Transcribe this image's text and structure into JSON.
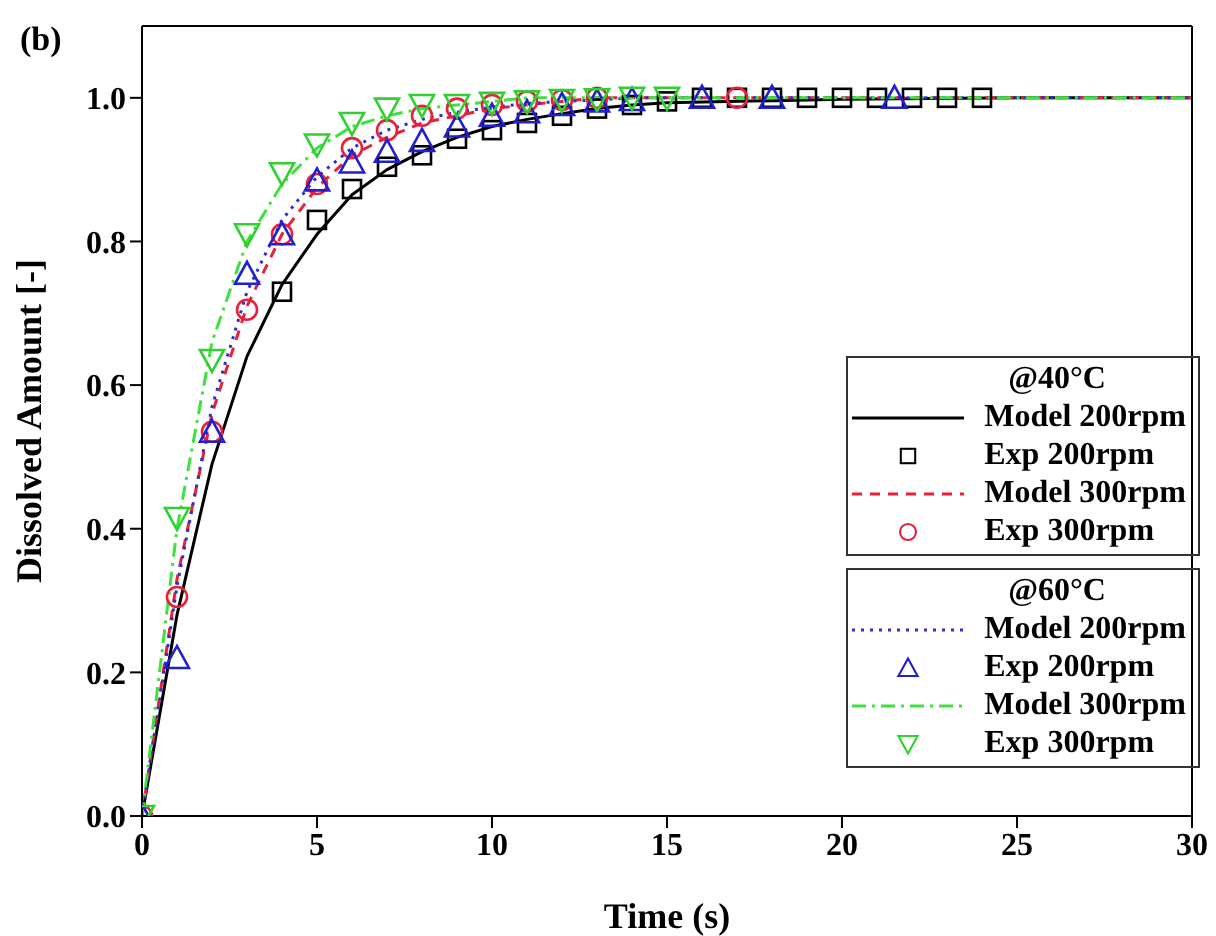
{
  "chart_data": {
    "type": "line",
    "title": "(b)",
    "xlabel": "Time (s)",
    "ylabel": "Dissolved Amount [-]",
    "xlim": [
      0,
      30
    ],
    "xticks": [
      0,
      5,
      10,
      15,
      20,
      25,
      30
    ],
    "ylim": [
      0,
      1.1
    ],
    "yticks": [
      {
        "value": 0,
        "label": "0.0"
      },
      {
        "value": 0.2,
        "label": "0.2"
      },
      {
        "value": 0.4,
        "label": "0.4"
      },
      {
        "value": 0.6,
        "label": "0.6"
      },
      {
        "value": 0.8,
        "label": "0.8"
      },
      {
        "value": 1,
        "label": "1.0"
      }
    ],
    "legend": "right",
    "annotations": [
      "@40°C",
      "@60°C"
    ],
    "series": [
      {
        "name": "Model 200rpm",
        "color": "#000000",
        "line_style": "solid",
        "marker": "none",
        "x": [
          0,
          1,
          2,
          3,
          4,
          5,
          6,
          7,
          8,
          9,
          10,
          11,
          12,
          13,
          14,
          15,
          20,
          25,
          30
        ],
        "values": [
          0,
          0.28,
          0.49,
          0.64,
          0.74,
          0.81,
          0.865,
          0.9,
          0.925,
          0.945,
          0.96,
          0.97,
          0.978,
          0.985,
          0.99,
          0.993,
          0.998,
          1,
          1
        ]
      },
      {
        "name": "Exp 200rpm",
        "type": "scatter",
        "color": "#000000",
        "marker": "square",
        "x": [
          4,
          5,
          6,
          7,
          8,
          9,
          10,
          11,
          12,
          13,
          14,
          15,
          16,
          17,
          18,
          19,
          20,
          21,
          22,
          23,
          24
        ],
        "values": [
          0.73,
          0.83,
          0.873,
          0.904,
          0.92,
          0.943,
          0.955,
          0.965,
          0.975,
          0.985,
          0.99,
          0.995,
          1,
          1,
          1,
          1,
          1,
          1,
          1,
          1,
          1
        ]
      },
      {
        "name": "Model 300rpm",
        "color": "#e8203a",
        "line_style": "dashed",
        "marker": "none",
        "x": [
          0,
          1,
          2,
          3,
          4,
          5,
          6,
          7,
          8,
          9,
          10,
          11,
          12,
          13,
          15,
          30
        ],
        "values": [
          0,
          0.33,
          0.56,
          0.71,
          0.81,
          0.875,
          0.92,
          0.945,
          0.965,
          0.975,
          0.985,
          0.99,
          0.995,
          1,
          1,
          1
        ]
      },
      {
        "name": "Exp 300rpm",
        "type": "scatter",
        "color": "#e8203a",
        "marker": "circle",
        "x": [
          0,
          1,
          2,
          3,
          4,
          5,
          6,
          7,
          8,
          9,
          10,
          11,
          12,
          13,
          17
        ],
        "values": [
          0,
          0.305,
          0.535,
          0.705,
          0.81,
          0.88,
          0.93,
          0.955,
          0.975,
          0.985,
          0.99,
          0.995,
          0.997,
          1,
          1
        ]
      },
      {
        "name": "Model 200rpm",
        "color": "#3030c8",
        "line_style": "dotted",
        "marker": "none",
        "x": [
          0,
          1,
          2,
          3,
          4,
          5,
          6,
          7,
          8,
          9,
          10,
          11,
          12,
          13,
          14,
          30
        ],
        "values": [
          0,
          0.32,
          0.57,
          0.73,
          0.83,
          0.89,
          0.93,
          0.955,
          0.97,
          0.98,
          0.987,
          0.992,
          0.995,
          0.997,
          1,
          1
        ]
      },
      {
        "name": "Exp 200rpm",
        "type": "scatter",
        "color": "#2020d0",
        "marker": "triangle",
        "x": [
          0,
          1,
          2,
          3,
          4,
          5,
          6,
          7,
          8,
          9,
          10,
          11,
          12,
          13,
          14,
          16,
          18,
          21.5
        ],
        "values": [
          0,
          0.22,
          0.535,
          0.755,
          0.81,
          0.885,
          0.91,
          0.925,
          0.94,
          0.96,
          0.975,
          0.98,
          0.99,
          0.995,
          0.997,
          1,
          1,
          1
        ]
      },
      {
        "name": "Model 300rpm",
        "color": "#40e040",
        "line_style": "dashdot",
        "marker": "none",
        "x": [
          0,
          1,
          2,
          3,
          4,
          5,
          6,
          7,
          8,
          9,
          10,
          11,
          30
        ],
        "values": [
          0,
          0.4,
          0.66,
          0.8,
          0.88,
          0.93,
          0.96,
          0.975,
          0.985,
          0.99,
          0.995,
          1,
          1
        ]
      },
      {
        "name": "Exp 300rpm",
        "type": "scatter",
        "color": "#30d030",
        "marker": "triangle-down",
        "x": [
          0,
          1,
          2,
          3,
          4,
          5,
          6,
          7,
          8,
          9,
          10,
          11,
          12,
          13,
          14,
          15
        ],
        "values": [
          0,
          0.415,
          0.635,
          0.81,
          0.895,
          0.935,
          0.965,
          0.985,
          0.99,
          0.99,
          0.993,
          0.995,
          0.997,
          0.998,
          1,
          1
        ]
      }
    ]
  }
}
